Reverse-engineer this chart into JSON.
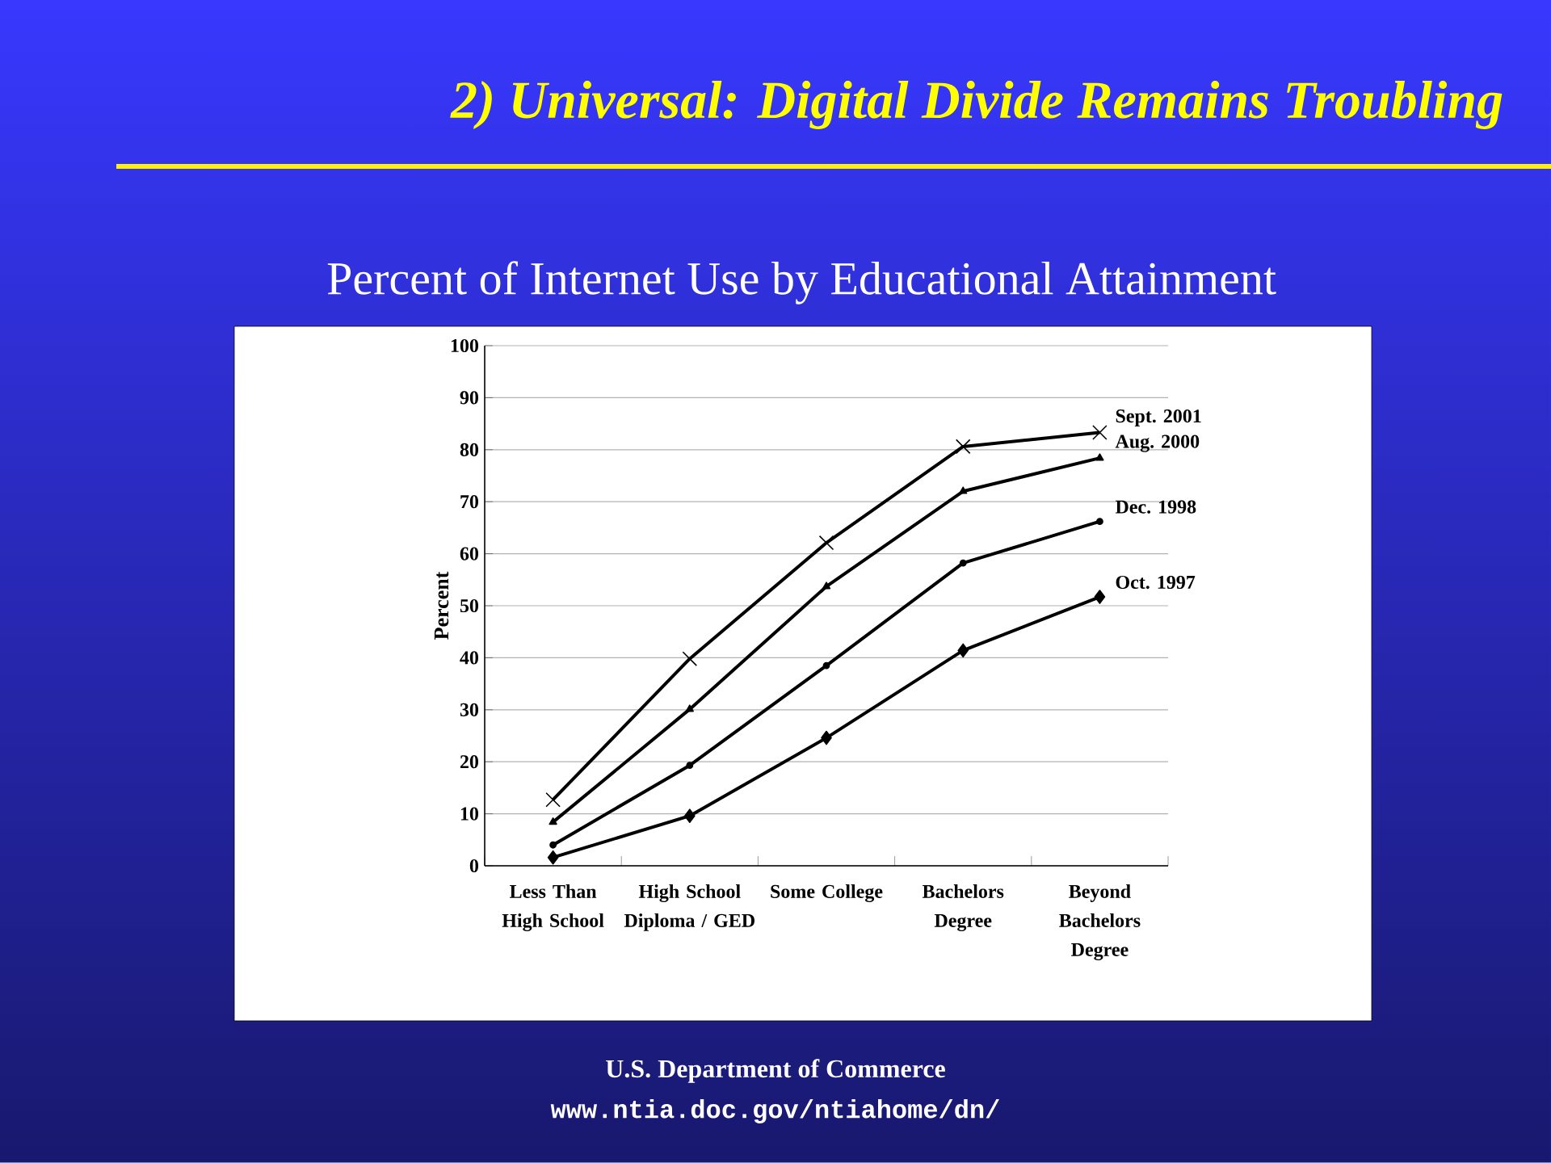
{
  "chart_data": {
    "type": "line",
    "title": "2) Universal: Digital Divide Remains Troubling",
    "subtitle": "Percent of Internet Use by Educational Attainment",
    "ylabel": "Percent",
    "categories": [
      "Less Than High School",
      "High School Diploma / GED",
      "Some College",
      "Bachelors Degree",
      "Beyond Bachelors Degree"
    ],
    "series": [
      {
        "name": "Sept. 2001",
        "color": "#000000",
        "marker": "cross",
        "values": [
          12.7,
          39.8,
          62.1,
          80.6,
          83.3
        ]
      },
      {
        "name": "Aug. 2000",
        "color": "#000000",
        "marker": "triangle",
        "values": [
          8.4,
          30.1,
          53.7,
          72.0,
          78.4
        ]
      },
      {
        "name": "Dec. 1998",
        "color": "#000000",
        "marker": "circle",
        "values": [
          4.0,
          19.3,
          38.5,
          58.2,
          66.2
        ]
      },
      {
        "name": "Oct. 1997",
        "color": "#000000",
        "marker": "diamond",
        "values": [
          1.6,
          9.6,
          24.6,
          41.4,
          51.7
        ]
      }
    ],
    "ylim": [
      0,
      100
    ],
    "yticks": [
      0,
      10,
      20,
      30,
      40,
      50,
      60,
      70,
      80,
      90,
      100
    ],
    "grid": "y",
    "line_style": "solid",
    "annotations": [
      "U.S. Department of Commerce",
      "www.ntia.doc.gov/ntiahome/dn/"
    ]
  }
}
